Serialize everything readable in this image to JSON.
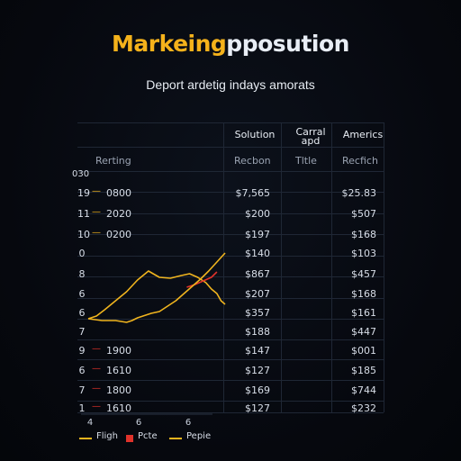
{
  "title_accent": "Markeing",
  "title_rest": "pposution",
  "subtitle": "Deport ardetig indays amorats",
  "table": {
    "headers": [
      "Solution",
      "Carral apd",
      "Americs"
    ],
    "subheaders": [
      "Rerting",
      "Recbon",
      "Tltle",
      "Recfich"
    ],
    "left_top_label": "030",
    "rows": [
      {
        "idx": "19",
        "code": "0800",
        "col1": "$7,565",
        "col3": "$25.83"
      },
      {
        "idx": "11",
        "code": "2020",
        "col1": "$200",
        "col3": "$507"
      },
      {
        "idx": "10",
        "code": "0200",
        "col1": "$197",
        "col3": "$168"
      },
      {
        "idx": "0",
        "code": "",
        "col1": "$140",
        "col3": "$103"
      },
      {
        "idx": "8",
        "code": "",
        "col1": "$867",
        "col3": "$457"
      },
      {
        "idx": "6",
        "code": "",
        "col1": "$207",
        "col3": "$168"
      },
      {
        "idx": "6",
        "code": "",
        "col1": "$357",
        "col3": "$161"
      },
      {
        "idx": "7",
        "code": "",
        "col1": "$188",
        "col3": "$447"
      },
      {
        "idx": "9",
        "code": "1900",
        "col1": "$147",
        "col3": "$001"
      },
      {
        "idx": "6",
        "code": "1610",
        "col1": "$127",
        "col3": "$185"
      },
      {
        "idx": "7",
        "code": "1800",
        "col1": "$169",
        "col3": "$744"
      },
      {
        "idx": "1",
        "code": "1610",
        "col1": "$127",
        "col3": "$232"
      }
    ]
  },
  "chart_data": {
    "type": "line",
    "x_ticks": [
      "4",
      "6",
      "6"
    ],
    "series": [
      {
        "name": "Fligh",
        "color": "#f0b41e",
        "points": [
          [
            0,
            0.02
          ],
          [
            0.06,
            0.05
          ],
          [
            0.12,
            0.12
          ],
          [
            0.2,
            0.22
          ],
          [
            0.28,
            0.32
          ],
          [
            0.36,
            0.45
          ],
          [
            0.44,
            0.55
          ],
          [
            0.52,
            0.48
          ],
          [
            0.6,
            0.47
          ],
          [
            0.68,
            0.5
          ],
          [
            0.74,
            0.52
          ],
          [
            0.8,
            0.48
          ],
          [
            0.86,
            0.42
          ],
          [
            0.9,
            0.35
          ],
          [
            0.94,
            0.3
          ],
          [
            0.97,
            0.22
          ],
          [
            1.0,
            0.18
          ]
        ]
      },
      {
        "name": "Pcte",
        "color": "#e0322a",
        "points": [
          [
            0.72,
            0.37
          ],
          [
            0.78,
            0.4
          ],
          [
            0.84,
            0.44
          ],
          [
            0.9,
            0.48
          ],
          [
            0.94,
            0.54
          ]
        ]
      },
      {
        "name": "Pepie",
        "color": "#f0b41e",
        "points": [
          [
            0,
            0.02
          ],
          [
            0.1,
            0.0
          ],
          [
            0.2,
            0.0
          ],
          [
            0.28,
            -0.02
          ],
          [
            0.32,
            0.0
          ],
          [
            0.36,
            0.03
          ],
          [
            0.4,
            0.05
          ],
          [
            0.46,
            0.08
          ],
          [
            0.52,
            0.1
          ],
          [
            0.58,
            0.16
          ],
          [
            0.64,
            0.22
          ],
          [
            0.7,
            0.3
          ],
          [
            0.76,
            0.38
          ],
          [
            0.82,
            0.46
          ],
          [
            0.88,
            0.55
          ],
          [
            0.94,
            0.65
          ],
          [
            1.0,
            0.75
          ]
        ]
      }
    ]
  },
  "colors": {
    "accent": "#f5b21b",
    "red": "#e0322a"
  }
}
